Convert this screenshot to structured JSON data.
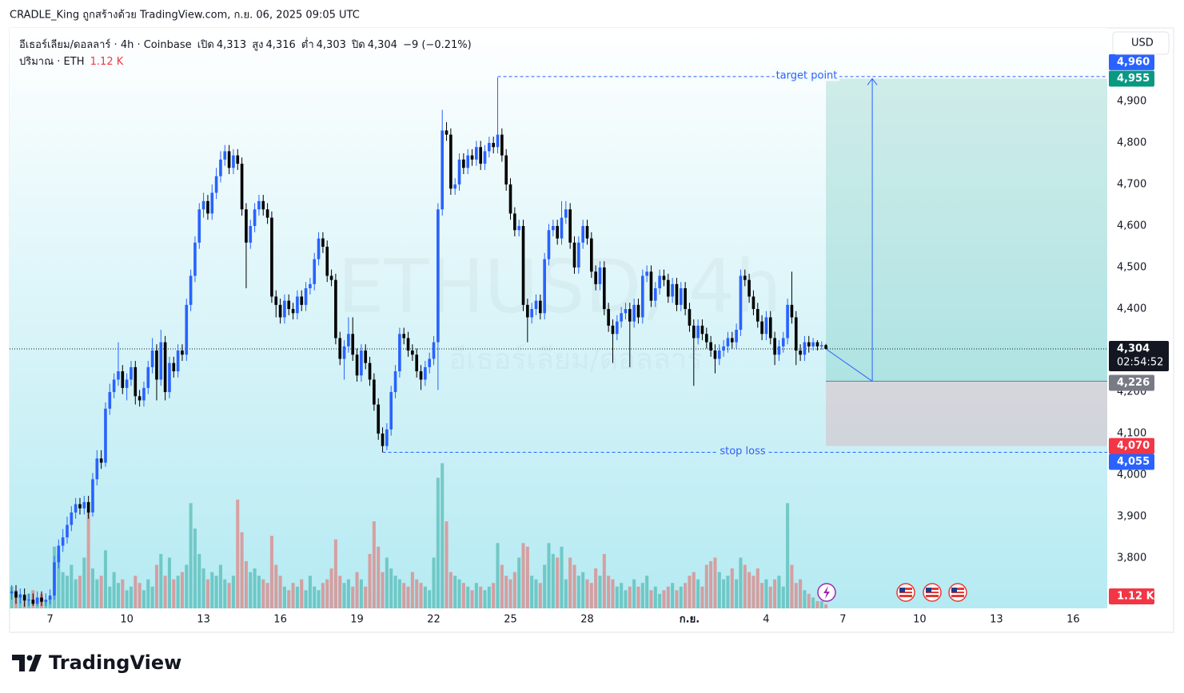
{
  "header": {
    "byline": "CRADLE_King ถูกสร้างด้วย TradingView.com, ก.ย. 06, 2025 09:05 UTC",
    "currency_button": "USD",
    "brand": "TradingView"
  },
  "chart_data": {
    "type": "candlestick",
    "watermark": "ETHUSD, 4h",
    "watermark_sub": "อีเธอร์เลียม/ดอลลาร์",
    "legend": {
      "symbol": "อีเธอร์เลียม/ดอลลาร์ · 4h · Coinbase",
      "open_label": "เปิด",
      "open": {
        "value": 4313,
        "label": "4,313"
      },
      "high_label": "สูง",
      "high": {
        "value": 4316,
        "label": "4,316"
      },
      "low_label": "ต่ำ",
      "low": {
        "value": 4303,
        "label": "4,303"
      },
      "close_label": "ปิด",
      "close": {
        "value": 4304,
        "label": "4,304"
      },
      "change_label": "−9 (−0.21%)"
    },
    "up_color": "#2962ff",
    "down_color": "#000000",
    "open": [
      3715,
      3720,
      3705,
      3712,
      3698,
      3700,
      3690,
      3705,
      3695,
      3700,
      3710,
      3790,
      3830,
      3850,
      3880,
      3910,
      3930,
      3920,
      3935,
      3910,
      3990,
      4040,
      4030,
      4160,
      4200,
      4230,
      4250,
      4210,
      4230,
      4260,
      4190,
      4180,
      4210,
      4260,
      4300,
      4230,
      4320,
      4200,
      4270,
      4250,
      4300,
      4290,
      4410,
      4480,
      4560,
      4640,
      4660,
      4630,
      4680,
      4720,
      4760,
      4780,
      4740,
      4770,
      4750,
      4640,
      4560,
      4600,
      4640,
      4660,
      4640,
      4620,
      4430,
      4410,
      4380,
      4420,
      4400,
      4390,
      4430,
      4410,
      4450,
      4460,
      4520,
      4570,
      4550,
      4480,
      4470,
      4330,
      4280,
      4310,
      4340,
      4290,
      4240,
      4300,
      4270,
      4230,
      4170,
      4100,
      4070,
      4110,
      4200,
      4250,
      4340,
      4330,
      4300,
      4290,
      4250,
      4230,
      4260,
      4280,
      4320,
      4640,
      4830,
      4820,
      4690,
      4700,
      4760,
      4740,
      4770,
      4760,
      4790,
      4750,
      4780,
      4800,
      4790,
      4820,
      4770,
      4700,
      4630,
      4590,
      4600,
      4410,
      4380,
      4400,
      4420,
      4390,
      4520,
      4590,
      4600,
      4570,
      4620,
      4640,
      4560,
      4500,
      4560,
      4600,
      4570,
      4490,
      4460,
      4500,
      4400,
      4360,
      4340,
      4370,
      4390,
      4400,
      4370,
      4410,
      4380,
      4480,
      4490,
      4420,
      4450,
      4480,
      4470,
      4430,
      4460,
      4410,
      4450,
      4400,
      4360,
      4330,
      4360,
      4340,
      4320,
      4300,
      4280,
      4300,
      4310,
      4330,
      4320,
      4350,
      4480,
      4470,
      4430,
      4400,
      4370,
      4340,
      4380,
      4330,
      4290,
      4310,
      4330,
      4410,
      4380,
      4300,
      4290,
      4320,
      4310,
      4320,
      4310,
      4313
    ],
    "high": [
      3735,
      3735,
      3727,
      3727,
      3715,
      3715,
      3720,
      3720,
      3715,
      3725,
      3805,
      3845,
      3870,
      3900,
      3925,
      3945,
      3945,
      3950,
      3950,
      4005,
      4060,
      4060,
      4175,
      4220,
      4245,
      4320,
      4265,
      4245,
      4275,
      4275,
      4205,
      4225,
      4275,
      4330,
      4315,
      4350,
      4335,
      4285,
      4285,
      4315,
      4315,
      4425,
      4495,
      4575,
      4655,
      4680,
      4675,
      4700,
      4740,
      4780,
      4795,
      4795,
      4785,
      4785,
      4765,
      4655,
      4615,
      4655,
      4675,
      4675,
      4655,
      4635,
      4445,
      4425,
      4435,
      4435,
      4415,
      4445,
      4445,
      4465,
      4475,
      4535,
      4585,
      4585,
      4565,
      4495,
      4485,
      4345,
      4325,
      4380,
      4380,
      4305,
      4315,
      4315,
      4285,
      4245,
      4185,
      4115,
      4125,
      4215,
      4265,
      4355,
      4355,
      4345,
      4315,
      4305,
      4265,
      4275,
      4295,
      4335,
      4655,
      4880,
      4850,
      4835,
      4715,
      4775,
      4775,
      4785,
      4785,
      4805,
      4805,
      4795,
      4815,
      4815,
      4958,
      4835,
      4785,
      4715,
      4645,
      4615,
      4615,
      4425,
      4415,
      4435,
      4435,
      4535,
      4605,
      4615,
      4615,
      4660,
      4660,
      4655,
      4575,
      4575,
      4615,
      4615,
      4585,
      4505,
      4515,
      4515,
      4415,
      4375,
      4385,
      4405,
      4415,
      4415,
      4425,
      4425,
      4495,
      4505,
      4505,
      4465,
      4495,
      4495,
      4485,
      4475,
      4475,
      4465,
      4465,
      4415,
      4375,
      4375,
      4375,
      4355,
      4335,
      4315,
      4315,
      4325,
      4345,
      4345,
      4365,
      4495,
      4495,
      4485,
      4445,
      4415,
      4385,
      4395,
      4395,
      4345,
      4325,
      4345,
      4425,
      4490,
      4395,
      4315,
      4335,
      4335,
      4330,
      4325,
      4322,
      4316
    ],
    "low": [
      3700,
      3690,
      3690,
      3683,
      3685,
      3685,
      3685,
      3685,
      3685,
      3688,
      3700,
      3775,
      3815,
      3835,
      3865,
      3895,
      3905,
      3905,
      3895,
      3900,
      3975,
      4015,
      4020,
      4145,
      4185,
      4215,
      4195,
      4180,
      4215,
      4170,
      4165,
      4165,
      4195,
      4245,
      4180,
      4215,
      4180,
      4185,
      4235,
      4235,
      4275,
      4275,
      4395,
      4465,
      4545,
      4620,
      4615,
      4615,
      4665,
      4705,
      4745,
      4725,
      4725,
      4735,
      4625,
      4450,
      4545,
      4585,
      4625,
      4625,
      4605,
      4415,
      4380,
      4365,
      4365,
      4385,
      4375,
      4375,
      4395,
      4395,
      4435,
      4445,
      4505,
      4535,
      4465,
      4455,
      4315,
      4265,
      4230,
      4295,
      4275,
      4225,
      4225,
      4255,
      4215,
      4155,
      4085,
      4055,
      4060,
      4095,
      4185,
      4235,
      4315,
      4285,
      4275,
      4235,
      4205,
      4215,
      4245,
      4265,
      4205,
      4625,
      4805,
      4675,
      4675,
      4685,
      4725,
      4725,
      4745,
      4745,
      4735,
      4735,
      4765,
      4775,
      4775,
      4755,
      4685,
      4615,
      4575,
      4575,
      4395,
      4320,
      4365,
      4385,
      4375,
      4375,
      4505,
      4575,
      4555,
      4555,
      4605,
      4545,
      4485,
      4485,
      4545,
      4555,
      4475,
      4445,
      4445,
      4385,
      4345,
      4270,
      4325,
      4355,
      4375,
      4260,
      4355,
      4365,
      4365,
      4465,
      4405,
      4405,
      4435,
      4455,
      4415,
      4415,
      4395,
      4395,
      4385,
      4345,
      4215,
      4315,
      4325,
      4305,
      4285,
      4245,
      4265,
      4285,
      4295,
      4305,
      4305,
      4335,
      4455,
      4415,
      4385,
      4355,
      4325,
      4325,
      4315,
      4265,
      4275,
      4295,
      4315,
      4365,
      4265,
      4275,
      4275,
      4295,
      4300,
      4300,
      4302,
      4303
    ],
    "close": [
      3720,
      3705,
      3712,
      3698,
      3700,
      3690,
      3705,
      3695,
      3700,
      3710,
      3790,
      3830,
      3850,
      3880,
      3910,
      3930,
      3920,
      3935,
      3910,
      3990,
      4040,
      4030,
      4160,
      4200,
      4230,
      4250,
      4210,
      4230,
      4260,
      4190,
      4180,
      4210,
      4260,
      4300,
      4230,
      4320,
      4200,
      4270,
      4250,
      4300,
      4290,
      4410,
      4480,
      4560,
      4640,
      4660,
      4630,
      4680,
      4720,
      4760,
      4780,
      4740,
      4770,
      4750,
      4640,
      4560,
      4600,
      4640,
      4660,
      4640,
      4620,
      4430,
      4410,
      4380,
      4420,
      4400,
      4390,
      4430,
      4410,
      4450,
      4460,
      4520,
      4570,
      4550,
      4480,
      4470,
      4330,
      4280,
      4310,
      4340,
      4290,
      4240,
      4300,
      4270,
      4230,
      4170,
      4100,
      4070,
      4110,
      4200,
      4250,
      4340,
      4330,
      4300,
      4290,
      4250,
      4230,
      4260,
      4280,
      4320,
      4640,
      4830,
      4820,
      4690,
      4700,
      4760,
      4740,
      4770,
      4760,
      4790,
      4750,
      4780,
      4800,
      4790,
      4820,
      4770,
      4700,
      4630,
      4590,
      4600,
      4410,
      4380,
      4400,
      4420,
      4390,
      4520,
      4590,
      4600,
      4570,
      4620,
      4640,
      4560,
      4500,
      4560,
      4600,
      4570,
      4490,
      4460,
      4500,
      4400,
      4360,
      4340,
      4370,
      4390,
      4400,
      4370,
      4410,
      4380,
      4480,
      4490,
      4420,
      4450,
      4480,
      4470,
      4430,
      4460,
      4410,
      4450,
      4400,
      4360,
      4330,
      4360,
      4340,
      4320,
      4300,
      4280,
      4300,
      4310,
      4330,
      4320,
      4350,
      4480,
      4470,
      4430,
      4400,
      4370,
      4340,
      4380,
      4330,
      4290,
      4310,
      4330,
      4410,
      4380,
      4300,
      4290,
      4320,
      4310,
      4320,
      4310,
      4313,
      4304
    ],
    "volume": {
      "title": "ปริมาณ · ETH",
      "up_color": "rgba(38,166,154,0.5)",
      "down_color": "rgba(239,83,80,0.5)",
      "lim": [
        0,
        160
      ],
      "last_label": "1.12 K",
      "values": [
        6,
        5,
        4,
        3,
        4,
        5,
        3,
        4,
        2,
        3,
        17,
        15,
        10,
        9,
        12,
        8,
        9,
        14,
        27,
        11,
        8,
        9,
        16,
        6,
        10,
        7,
        8,
        5,
        6,
        9,
        7,
        5,
        8,
        6,
        12,
        15,
        9,
        14,
        8,
        9,
        10,
        12,
        29,
        22,
        15,
        11,
        8,
        10,
        9,
        12,
        8,
        7,
        9,
        30,
        21,
        13,
        10,
        11,
        9,
        8,
        7,
        20,
        12,
        9,
        6,
        5,
        7,
        6,
        8,
        5,
        9,
        6,
        5,
        7,
        8,
        11,
        19,
        9,
        7,
        8,
        6,
        10,
        8,
        6,
        15,
        24,
        17,
        10,
        14,
        11,
        9,
        8,
        7,
        6,
        10,
        8,
        7,
        6,
        5,
        14,
        36,
        40,
        24,
        10,
        9,
        8,
        7,
        6,
        5,
        7,
        6,
        5,
        6,
        7,
        18,
        12,
        9,
        8,
        10,
        14,
        18,
        17,
        9,
        8,
        7,
        12,
        18,
        15,
        14,
        17,
        8,
        14,
        12,
        9,
        10,
        8,
        7,
        11,
        9,
        15,
        9,
        8,
        6,
        7,
        5,
        6,
        8,
        6,
        7,
        9,
        5,
        6,
        4,
        5,
        6,
        7,
        5,
        6,
        7,
        9,
        10,
        8,
        6,
        12,
        13,
        14,
        10,
        8,
        9,
        11,
        8,
        14,
        12,
        10,
        9,
        11,
        7,
        8,
        6,
        8,
        9,
        6,
        29,
        12,
        7,
        8,
        5,
        4,
        3,
        2,
        2,
        1.12
      ]
    },
    "xlim": [
      -0.5,
      257
    ],
    "xticks": [
      {
        "value": 9,
        "label": "7"
      },
      {
        "value": 27,
        "label": "10"
      },
      {
        "value": 45,
        "label": "13"
      },
      {
        "value": 63,
        "label": "16"
      },
      {
        "value": 81,
        "label": "19"
      },
      {
        "value": 99,
        "label": "22"
      },
      {
        "value": 117,
        "label": "25"
      },
      {
        "value": 135,
        "label": "28"
      },
      {
        "value": 159,
        "label": "ก.ย."
      },
      {
        "value": 177,
        "label": "4"
      },
      {
        "value": 195,
        "label": "7"
      },
      {
        "value": 213,
        "label": "10"
      },
      {
        "value": 231,
        "label": "13"
      },
      {
        "value": 249,
        "label": "16"
      }
    ],
    "ylim": [
      3679,
      5077
    ],
    "yticks": [
      {
        "value": 3800,
        "label": "3,800"
      },
      {
        "value": 3900,
        "label": "3,900"
      },
      {
        "value": 4000,
        "label": "4,000"
      },
      {
        "value": 4100,
        "label": "4,100"
      },
      {
        "value": 4200,
        "label": "4,200"
      },
      {
        "value": 4300,
        "label": "4,300"
      },
      {
        "value": 4400,
        "label": "4,400"
      },
      {
        "value": 4500,
        "label": "4,500"
      },
      {
        "value": 4600,
        "label": "4,600"
      },
      {
        "value": 4700,
        "label": "4,700"
      },
      {
        "value": 4800,
        "label": "4,800"
      },
      {
        "value": 4900,
        "label": "4,900"
      }
    ],
    "last_price": {
      "value": 4304,
      "label": "4,304"
    },
    "countdown": "02:54:52",
    "target_line": {
      "text": "target point",
      "price": {
        "value": 4960,
        "label": "4,960"
      },
      "color": "#2962ff"
    },
    "stop_line": {
      "text": "stop loss",
      "price": {
        "value": 4055,
        "label": "4,055"
      },
      "color": "#2962ff"
    },
    "position": {
      "target": {
        "value": 4955,
        "label": "4,955"
      },
      "entry": {
        "value": 4226,
        "label": "4,226"
      },
      "stop": {
        "value": 4070,
        "label": "4,070"
      },
      "target_color": "#089981",
      "entry_color": "#787b86",
      "stop_color": "#f23645"
    }
  }
}
